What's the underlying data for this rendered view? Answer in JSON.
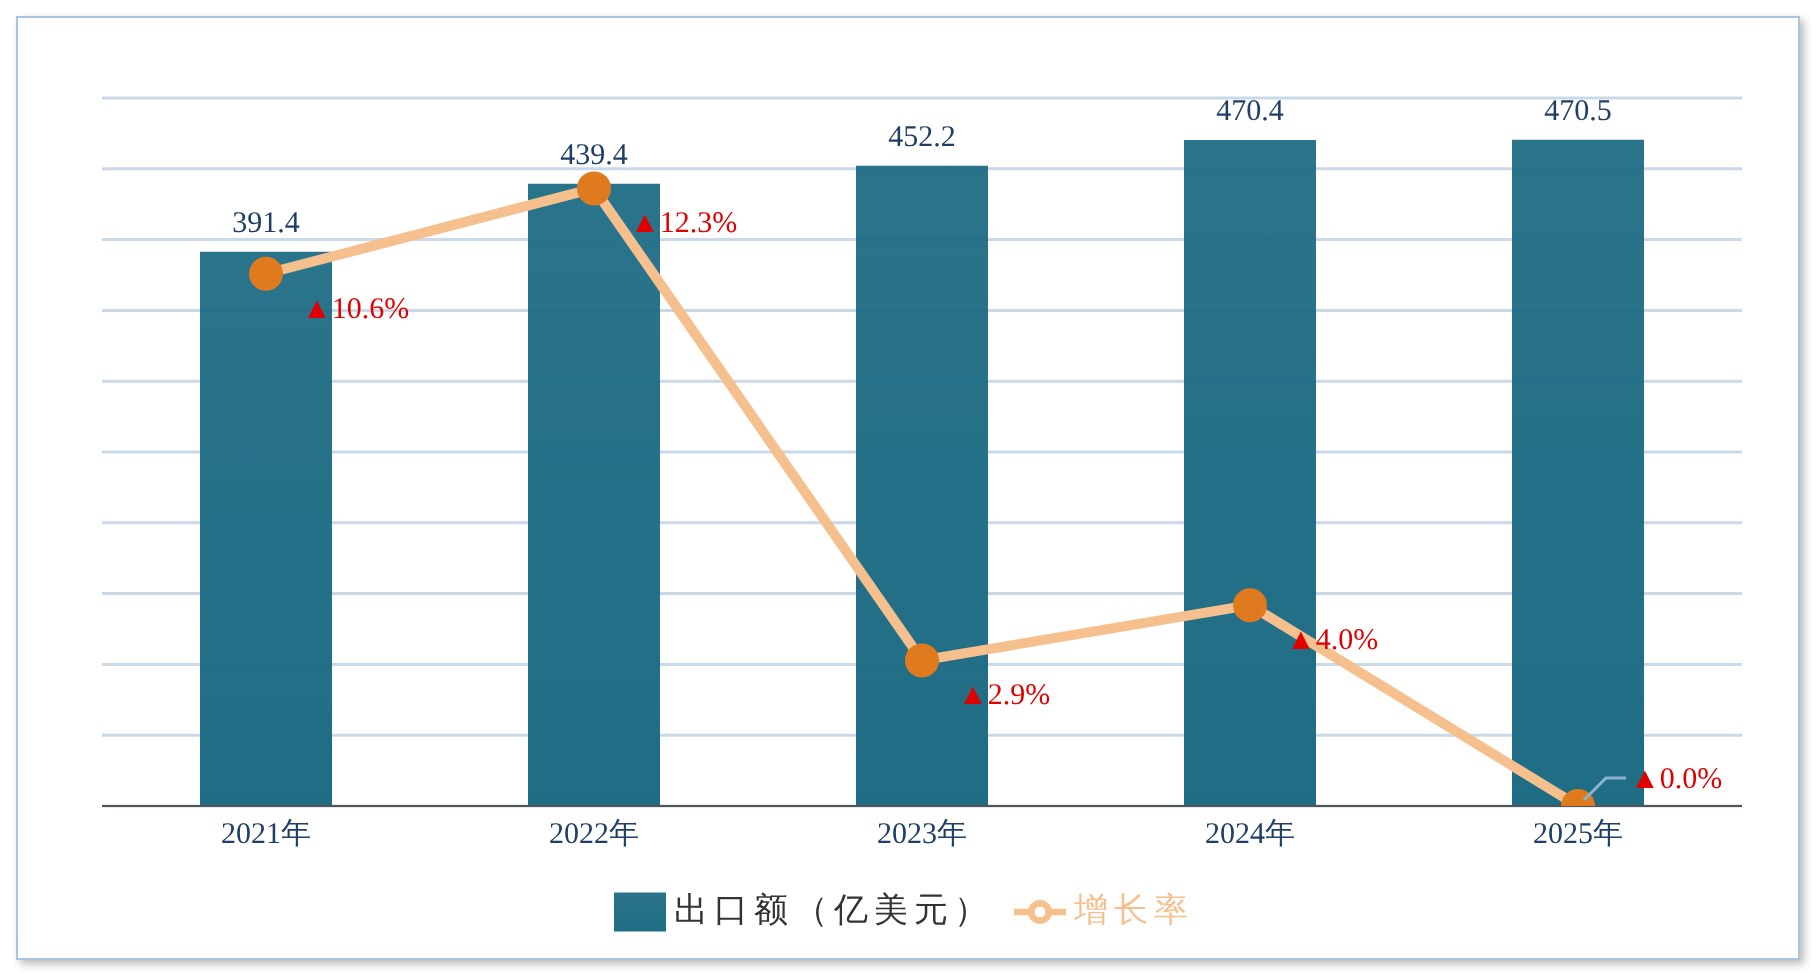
{
  "chart_data": {
    "type": "bar",
    "categories": [
      "2021年",
      "2022年",
      "2023年",
      "2024年",
      "2025年"
    ],
    "series": [
      {
        "name": "出口额（亿美元）",
        "color": "#1f6d85",
        "values": [
          391.4,
          439.4,
          452.2,
          470.4,
          470.5
        ],
        "value_labels": [
          "391.4",
          "439.4",
          "452.2",
          "470.4",
          "470.5"
        ]
      },
      {
        "name": "增长率",
        "type": "line",
        "axis": "y2",
        "color": "#f6c08e",
        "values": [
          10.6,
          12.3,
          2.9,
          4.0,
          0.0
        ],
        "value_labels": [
          "▲10.6%",
          "▲12.3%",
          "▲2.9%",
          "▲4.0%",
          "▲0.0%"
        ]
      }
    ],
    "ylim": [
      0,
      500
    ],
    "yticks": [
      {
        "value": 0,
        "label": null
      },
      {
        "value": 50,
        "label": null
      },
      {
        "value": 100,
        "label": null
      },
      {
        "value": 150,
        "label": null
      },
      {
        "value": 200,
        "label": null
      },
      {
        "value": 250,
        "label": null
      },
      {
        "value": 300,
        "label": null
      },
      {
        "value": 350,
        "label": null
      },
      {
        "value": 400,
        "label": null
      },
      {
        "value": 450,
        "label": null
      },
      {
        "value": 500,
        "label": null
      }
    ],
    "y2lim": [
      0,
      14.1
    ],
    "grid": "y",
    "tick_labels": "x",
    "legend": "bottom",
    "marker": "circle",
    "line_style": "solid"
  }
}
